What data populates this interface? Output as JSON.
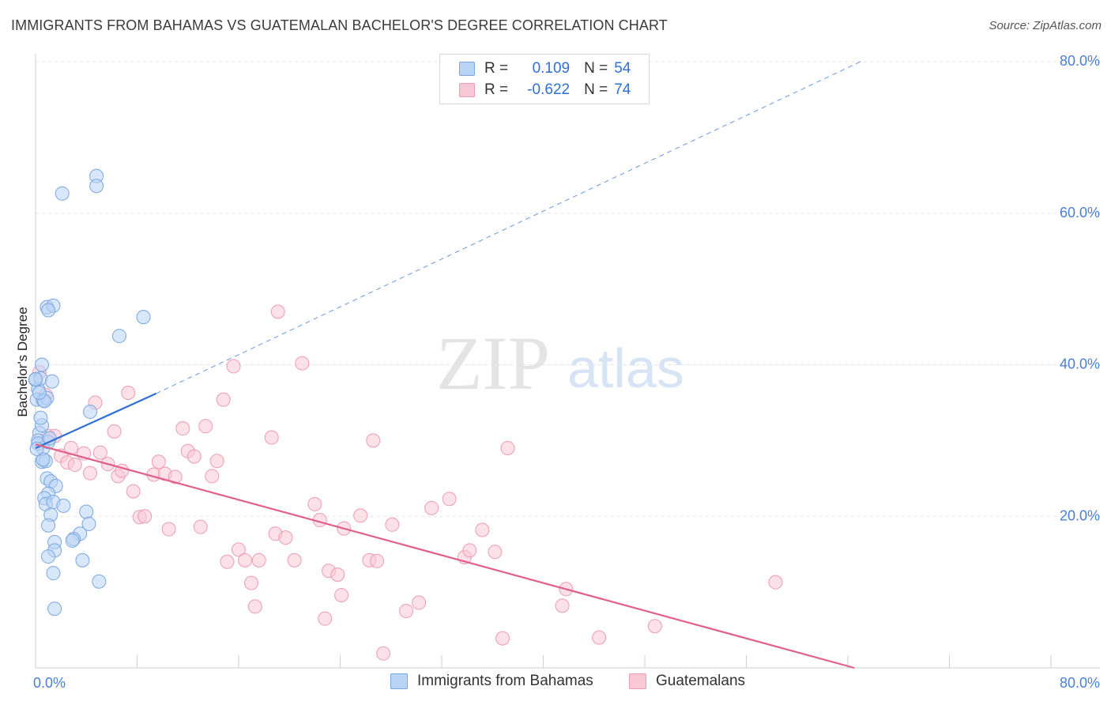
{
  "title": "IMMIGRANTS FROM BAHAMAS VS GUATEMALAN BACHELOR'S DEGREE CORRELATION CHART",
  "source": "Source: ZipAtlas.com",
  "watermark": {
    "zip": "ZIP",
    "atlas": "atlas"
  },
  "legend": {
    "rows": [
      {
        "r_label": "R =",
        "r_value": "0.109",
        "n_label": "N =",
        "n_value": "54",
        "fill": "#b9d3f5",
        "stroke": "#7aa7e0"
      },
      {
        "r_label": "R =",
        "r_value": "-0.622",
        "n_label": "N =",
        "n_value": "74",
        "fill": "#f9c8d6",
        "stroke": "#ef9bb3"
      }
    ]
  },
  "bottom_legend": [
    {
      "label": "Immigrants from Bahamas",
      "fill": "#b9d3f5",
      "stroke": "#7aa7e0"
    },
    {
      "label": "Guatemalans",
      "fill": "#f9c8d6",
      "stroke": "#ef9bb3"
    }
  ],
  "chart_data": {
    "type": "scatter",
    "title": "IMMIGRANTS FROM BAHAMAS VS GUATEMALAN BACHELOR'S DEGREE CORRELATION CHART",
    "xlabel": "",
    "ylabel": "Bachelor's Degree",
    "xlim": [
      0,
      80
    ],
    "ylim": [
      0,
      80
    ],
    "x_tick_labels": [
      "0.0%",
      "80.0%"
    ],
    "y_ticks": [
      20,
      40,
      60,
      80
    ],
    "y_tick_labels": [
      "20.0%",
      "40.0%",
      "60.0%",
      "80.0%"
    ],
    "grid": true,
    "series": [
      {
        "name": "Immigrants from Bahamas",
        "color": "#7aa7e0",
        "fill": "#b9d3f5",
        "trend_color": "#2f6fd6",
        "trend": {
          "x0": 0,
          "y0": 29.0,
          "x1": 9.5,
          "y1": 36.2,
          "dashed_to_x": 65,
          "dashed_to_y": 80
        },
        "points": [
          [
            0.0,
            38.0
          ],
          [
            0.2,
            36.8
          ],
          [
            0.4,
            38.2
          ],
          [
            0.1,
            35.4
          ],
          [
            0.6,
            35.3
          ],
          [
            0.9,
            35.6
          ],
          [
            1.3,
            37.8
          ],
          [
            0.5,
            40.0
          ],
          [
            0.3,
            31.0
          ],
          [
            0.2,
            30.0
          ],
          [
            0.5,
            32.0
          ],
          [
            0.6,
            29.0
          ],
          [
            1.0,
            29.8
          ],
          [
            0.5,
            27.2
          ],
          [
            0.8,
            27.3
          ],
          [
            0.6,
            27.5
          ],
          [
            0.9,
            25.0
          ],
          [
            1.2,
            24.6
          ],
          [
            1.6,
            24.0
          ],
          [
            1.0,
            23.0
          ],
          [
            0.7,
            22.4
          ],
          [
            0.8,
            21.6
          ],
          [
            1.4,
            21.9
          ],
          [
            2.2,
            21.4
          ],
          [
            1.2,
            20.2
          ],
          [
            1.0,
            18.8
          ],
          [
            4.0,
            20.6
          ],
          [
            4.2,
            19.0
          ],
          [
            3.5,
            17.7
          ],
          [
            3.0,
            17.0
          ],
          [
            2.9,
            16.8
          ],
          [
            1.5,
            16.6
          ],
          [
            1.5,
            15.5
          ],
          [
            1.0,
            14.7
          ],
          [
            3.7,
            14.2
          ],
          [
            1.4,
            12.5
          ],
          [
            5.0,
            11.4
          ],
          [
            1.5,
            7.8
          ],
          [
            0.9,
            47.6
          ],
          [
            1.4,
            47.8
          ],
          [
            1.0,
            47.2
          ],
          [
            8.5,
            46.3
          ],
          [
            6.6,
            43.8
          ],
          [
            4.3,
            33.8
          ],
          [
            2.1,
            62.6
          ],
          [
            4.8,
            64.9
          ],
          [
            4.8,
            63.6
          ],
          [
            0.0,
            38.1
          ],
          [
            0.2,
            29.6
          ],
          [
            0.4,
            33.0
          ],
          [
            0.1,
            28.9
          ],
          [
            0.7,
            35.2
          ],
          [
            1.1,
            30.3
          ],
          [
            0.3,
            36.3
          ]
        ]
      },
      {
        "name": "Guatemalans",
        "color": "#ef9bb3",
        "fill": "#f9c8d6",
        "trend_color": "#e0608a",
        "trend": {
          "x0": 0,
          "y0": 29.5,
          "x1": 64.5,
          "y1": 0
        },
        "points": [
          [
            0.3,
            39.0
          ],
          [
            0.8,
            36.0
          ],
          [
            1.0,
            30.6
          ],
          [
            1.5,
            30.6
          ],
          [
            2.0,
            28.0
          ],
          [
            2.8,
            29.0
          ],
          [
            2.5,
            27.1
          ],
          [
            3.1,
            26.8
          ],
          [
            3.8,
            28.3
          ],
          [
            4.3,
            25.7
          ],
          [
            4.7,
            35.0
          ],
          [
            5.1,
            28.4
          ],
          [
            5.7,
            26.9
          ],
          [
            6.2,
            31.2
          ],
          [
            6.5,
            25.3
          ],
          [
            6.8,
            26.0
          ],
          [
            7.3,
            36.3
          ],
          [
            7.7,
            23.3
          ],
          [
            8.2,
            19.9
          ],
          [
            8.6,
            20.0
          ],
          [
            9.3,
            25.5
          ],
          [
            9.7,
            27.2
          ],
          [
            10.2,
            25.6
          ],
          [
            10.5,
            18.3
          ],
          [
            11.0,
            25.2
          ],
          [
            11.6,
            31.6
          ],
          [
            12.0,
            28.6
          ],
          [
            12.5,
            27.9
          ],
          [
            13.0,
            18.6
          ],
          [
            13.4,
            31.9
          ],
          [
            13.9,
            25.3
          ],
          [
            14.3,
            27.3
          ],
          [
            14.8,
            35.4
          ],
          [
            15.1,
            14.0
          ],
          [
            15.6,
            39.8
          ],
          [
            16.0,
            15.6
          ],
          [
            16.5,
            14.2
          ],
          [
            17.0,
            11.2
          ],
          [
            17.3,
            8.1
          ],
          [
            17.6,
            14.2
          ],
          [
            18.6,
            30.4
          ],
          [
            18.9,
            17.7
          ],
          [
            19.1,
            47.0
          ],
          [
            19.7,
            17.2
          ],
          [
            20.4,
            14.2
          ],
          [
            21.0,
            40.2
          ],
          [
            22.0,
            21.6
          ],
          [
            22.4,
            19.5
          ],
          [
            22.8,
            6.5
          ],
          [
            23.1,
            12.8
          ],
          [
            23.8,
            12.3
          ],
          [
            24.1,
            9.6
          ],
          [
            24.3,
            18.4
          ],
          [
            25.6,
            20.1
          ],
          [
            26.3,
            14.2
          ],
          [
            26.6,
            30.0
          ],
          [
            26.9,
            14.1
          ],
          [
            27.4,
            1.9
          ],
          [
            28.1,
            18.9
          ],
          [
            29.2,
            7.5
          ],
          [
            30.2,
            8.6
          ],
          [
            31.2,
            21.1
          ],
          [
            32.6,
            22.3
          ],
          [
            33.8,
            14.6
          ],
          [
            34.2,
            15.5
          ],
          [
            35.2,
            18.2
          ],
          [
            36.2,
            15.3
          ],
          [
            36.8,
            3.9
          ],
          [
            37.2,
            29.0
          ],
          [
            41.8,
            10.4
          ],
          [
            41.5,
            8.2
          ],
          [
            44.4,
            4.0
          ],
          [
            48.8,
            5.5
          ],
          [
            58.3,
            11.3
          ]
        ]
      }
    ]
  }
}
